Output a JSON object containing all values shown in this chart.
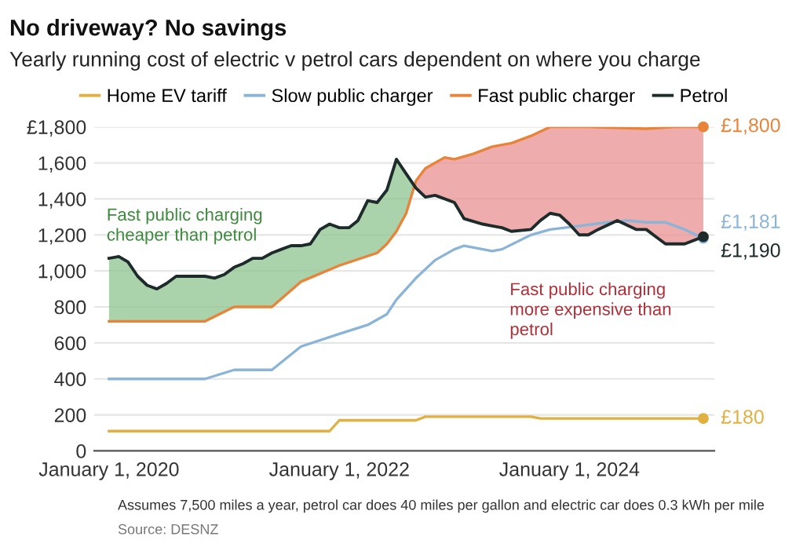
{
  "chart_data": {
    "type": "line",
    "title": "No driveway? No savings",
    "subtitle": "Yearly running cost of electric v petrol cars dependent on where you charge",
    "series": [
      {
        "name": "Home EV tariff",
        "color": "#e0b040",
        "x": [
          "2020-01",
          "2021-12",
          "2022-01",
          "2022-09",
          "2022-10",
          "2023-09",
          "2023-10",
          "2025-03"
        ],
        "values": [
          110,
          110,
          170,
          170,
          190,
          190,
          180,
          180
        ],
        "value_labels": [
          null,
          null,
          null,
          null,
          null,
          null,
          null,
          "£180"
        ]
      },
      {
        "name": "Slow public charger",
        "color": "#8ab4d8",
        "x": [
          "2020-01",
          "2020-11",
          "2021-02",
          "2021-06",
          "2021-09",
          "2022-01",
          "2022-04",
          "2022-06",
          "2022-07",
          "2022-09",
          "2022-11",
          "2023-01",
          "2023-02",
          "2023-05",
          "2023-06",
          "2023-09",
          "2023-11",
          "2024-02",
          "2024-05",
          "2024-07",
          "2024-09",
          "2024-11",
          "2025-01",
          "2025-03"
        ],
        "values": [
          400,
          400,
          450,
          450,
          580,
          650,
          700,
          760,
          840,
          960,
          1060,
          1120,
          1140,
          1110,
          1120,
          1200,
          1230,
          1250,
          1270,
          1280,
          1270,
          1270,
          1230,
          1181
        ],
        "value_labels": [
          null,
          null,
          null,
          null,
          null,
          null,
          null,
          null,
          null,
          null,
          null,
          null,
          null,
          null,
          null,
          null,
          null,
          null,
          null,
          null,
          null,
          null,
          null,
          "£1,181"
        ]
      },
      {
        "name": "Fast public charger",
        "color": "#e8843a",
        "x": [
          "2020-01",
          "2020-11",
          "2021-02",
          "2021-06",
          "2021-09",
          "2022-01",
          "2022-05",
          "2022-06",
          "2022-07",
          "2022-08",
          "2022-09",
          "2022-10",
          "2022-12",
          "2023-01",
          "2023-03",
          "2023-05",
          "2023-07",
          "2023-09",
          "2023-11",
          "2024-03",
          "2024-09",
          "2024-12",
          "2025-03"
        ],
        "values": [
          720,
          720,
          800,
          800,
          940,
          1030,
          1100,
          1150,
          1220,
          1320,
          1500,
          1570,
          1630,
          1620,
          1650,
          1690,
          1710,
          1750,
          1800,
          1800,
          1790,
          1800,
          1800
        ],
        "value_labels": [
          null,
          null,
          null,
          null,
          null,
          null,
          null,
          null,
          null,
          null,
          null,
          null,
          null,
          null,
          null,
          null,
          null,
          null,
          null,
          null,
          null,
          null,
          "£1,800"
        ]
      },
      {
        "name": "Petrol",
        "color": "#1e2b2b",
        "x": [
          "2020-01",
          "2020-02",
          "2020-03",
          "2020-04",
          "2020-05",
          "2020-06",
          "2020-07",
          "2020-08",
          "2020-09",
          "2020-11",
          "2020-12",
          "2021-01",
          "2021-02",
          "2021-03",
          "2021-04",
          "2021-05",
          "2021-06",
          "2021-07",
          "2021-08",
          "2021-09",
          "2021-10",
          "2021-11",
          "2021-12",
          "2022-01",
          "2022-02",
          "2022-03",
          "2022-04",
          "2022-05",
          "2022-06",
          "2022-07",
          "2022-08",
          "2022-09",
          "2022-10",
          "2022-11",
          "2023-01",
          "2023-02",
          "2023-04",
          "2023-05",
          "2023-06",
          "2023-07",
          "2023-09",
          "2023-10",
          "2023-11",
          "2023-12",
          "2024-01",
          "2024-02",
          "2024-03",
          "2024-04",
          "2024-06",
          "2024-08",
          "2024-09",
          "2024-10",
          "2024-11",
          "2025-01",
          "2025-03"
        ],
        "values": [
          1070,
          1080,
          1050,
          970,
          920,
          900,
          930,
          970,
          970,
          970,
          960,
          980,
          1020,
          1040,
          1070,
          1070,
          1100,
          1120,
          1140,
          1140,
          1150,
          1230,
          1260,
          1240,
          1240,
          1280,
          1390,
          1380,
          1450,
          1620,
          1540,
          1460,
          1410,
          1420,
          1380,
          1290,
          1260,
          1250,
          1240,
          1220,
          1230,
          1280,
          1320,
          1310,
          1260,
          1200,
          1200,
          1230,
          1280,
          1230,
          1230,
          1190,
          1150,
          1150,
          1190
        ],
        "value_labels": [
          null,
          null,
          null,
          null,
          null,
          null,
          null,
          null,
          null,
          null,
          null,
          null,
          null,
          null,
          null,
          null,
          null,
          null,
          null,
          null,
          null,
          null,
          null,
          null,
          null,
          null,
          null,
          null,
          null,
          null,
          null,
          null,
          null,
          null,
          null,
          null,
          null,
          null,
          null,
          null,
          null,
          null,
          null,
          null,
          null,
          null,
          null,
          null,
          null,
          null,
          null,
          null,
          null,
          null,
          "£1,190"
        ]
      }
    ],
    "xlim": [
      "2019-11-15",
      "2025-04-05"
    ],
    "xticks": [
      {
        "value": "2020-01-01",
        "label": "January 1, 2020"
      },
      {
        "value": "2022-01-01",
        "label": "January 1, 2022"
      },
      {
        "value": "2024-01-01",
        "label": "January 1, 2024"
      }
    ],
    "ylim": [
      0,
      1800
    ],
    "yticks": [
      {
        "value": 0,
        "label": "0"
      },
      {
        "value": 200,
        "label": "200"
      },
      {
        "value": 400,
        "label": "400"
      },
      {
        "value": 600,
        "label": "600"
      },
      {
        "value": 800,
        "label": "800"
      },
      {
        "value": 1000,
        "label": "1,000"
      },
      {
        "value": 1200,
        "label": "1,200"
      },
      {
        "value": 1400,
        "label": "1,400"
      },
      {
        "value": 1600,
        "label": "1,600"
      },
      {
        "value": 1800,
        "label": "£1,800"
      }
    ],
    "grid": "y",
    "legend": "top",
    "annotations": [
      "Fast public charging\ncheaper than petrol",
      "Fast public charging\nmore expensive than\npetrol",
      "Assumes 7,500 miles a year, petrol car does 40 miles per gallon and electric car does 0.3 kWh per mile",
      "Source: DESNZ"
    ]
  }
}
